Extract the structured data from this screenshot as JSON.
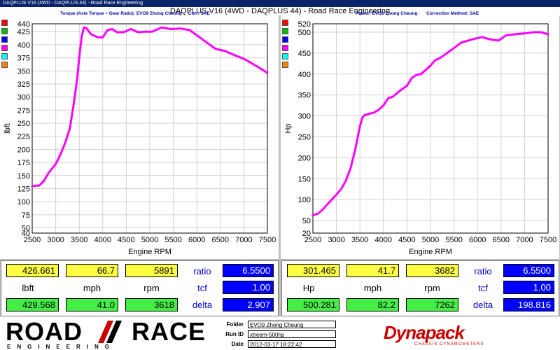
{
  "window": {
    "title": "DAQPLUS V16 (4WD - DAQPLUS 44) - Road Race Engineering"
  },
  "main_title": "DAQPLUS V16 (4WD - DAQPLUS 44) - Road Race Engineering",
  "left_panel": {
    "header_1": "Torque (Axle Torque ÷ Gear Ratio): EVO9 Zhong Cheung",
    "header_2": "Corr: SAE",
    "readout": {
      "top_values": [
        "426.661",
        "66.7",
        "5891"
      ],
      "units": [
        "lbft",
        "mph",
        "rpm"
      ],
      "bottom_values": [
        "429.568",
        "41.0",
        "3618"
      ],
      "labels": [
        "ratio",
        "tcf",
        "delta"
      ],
      "right_values": [
        "6.5500",
        "1.00",
        "2.907"
      ]
    }
  },
  "right_panel": {
    "header_1": "Power: EVO9 Zhong Cheung",
    "header_2": "Correction Method: SAE",
    "readout": {
      "top_values": [
        "301.465",
        "41.7",
        "3682"
      ],
      "units": [
        "Hp",
        "mph",
        "rpm"
      ],
      "bottom_values": [
        "500.281",
        "82.2",
        "7262"
      ],
      "labels": [
        "ratio",
        "tcf",
        "delta"
      ],
      "right_values": [
        "6.5500",
        "1.00",
        "198.816"
      ]
    }
  },
  "swatch_colors": [
    "#ff0000",
    "#00c000",
    "#0000ff",
    "#ff00ff",
    "#00ffff",
    "#ff8000"
  ],
  "chart_data": [
    {
      "type": "line",
      "xlabel": "Engine RPM",
      "ylabel": "lbft",
      "xlim": [
        2500,
        7500
      ],
      "ylim": [
        40,
        440
      ],
      "x_ticks": [
        2500,
        3000,
        3500,
        4000,
        4500,
        5000,
        5500,
        6000,
        6500,
        7000,
        7500
      ],
      "y_ticks": [
        40,
        50,
        75,
        100,
        125,
        150,
        175,
        200,
        225,
        250,
        275,
        300,
        325,
        350,
        375,
        400,
        425,
        440
      ],
      "grid": true,
      "line_color": "#ff00ff",
      "series": [
        {
          "x": [
            2500,
            2650,
            2750,
            2850,
            3000,
            3100,
            3200,
            3300,
            3380,
            3450,
            3500,
            3550,
            3600,
            3650,
            3750,
            3900,
            4000,
            4100,
            4200,
            4300,
            4450,
            4600,
            4750,
            4900,
            5050,
            5250,
            5450,
            5650,
            5850,
            6000,
            6200,
            6400,
            6600,
            6800,
            7000,
            7200,
            7400,
            7500
          ],
          "y": [
            130,
            131,
            140,
            155,
            172,
            190,
            212,
            240,
            285,
            330,
            375,
            415,
            433,
            432,
            420,
            414,
            414,
            428,
            430,
            424,
            424,
            430,
            424,
            425,
            425,
            433,
            430,
            431,
            428,
            418,
            405,
            392,
            388,
            380,
            373,
            363,
            352,
            346
          ]
        }
      ]
    },
    {
      "type": "line",
      "xlabel": "Engine RPM",
      "ylabel": "Hp",
      "xlim": [
        2500,
        7500
      ],
      "ylim": [
        20,
        520
      ],
      "x_ticks": [
        2500,
        3000,
        3500,
        4000,
        4500,
        5000,
        5500,
        6000,
        6500,
        7000,
        7500
      ],
      "y_ticks": [
        20,
        50,
        100,
        150,
        200,
        250,
        300,
        350,
        400,
        450,
        500,
        520
      ],
      "grid": true,
      "line_color": "#ff00ff",
      "series": [
        {
          "x": [
            2500,
            2600,
            2700,
            2800,
            2900,
            3000,
            3100,
            3200,
            3300,
            3400,
            3500,
            3550,
            3600,
            3700,
            3800,
            3900,
            4000,
            4100,
            4200,
            4350,
            4500,
            4600,
            4700,
            4800,
            4900,
            5000,
            5100,
            5200,
            5350,
            5500,
            5650,
            5800,
            6000,
            6100,
            6200,
            6300,
            6450,
            6600,
            6800,
            7000,
            7200,
            7350,
            7500
          ],
          "y": [
            63,
            66,
            75,
            88,
            100,
            112,
            125,
            145,
            175,
            220,
            275,
            296,
            302,
            305,
            308,
            315,
            325,
            342,
            346,
            360,
            372,
            390,
            398,
            400,
            410,
            420,
            433,
            438,
            450,
            462,
            475,
            480,
            486,
            488,
            485,
            482,
            480,
            492,
            495,
            497,
            500,
            500,
            495
          ]
        }
      ]
    }
  ],
  "footer": {
    "logo_text_left": "ROAD",
    "logo_text_right": "RACE",
    "logo_sub": "ENGINEERING",
    "folder_label": "Folder",
    "folder_value": "EVO9 Zhong Cheung",
    "runid_label": "Run ID",
    "runid_value": "xtreem-500hp",
    "date_label": "Date",
    "date_value": "2012-03-17 18:22:42",
    "brand": "Dynapack",
    "brand_sub": "CHASSIS DYNAMOMETERS"
  }
}
